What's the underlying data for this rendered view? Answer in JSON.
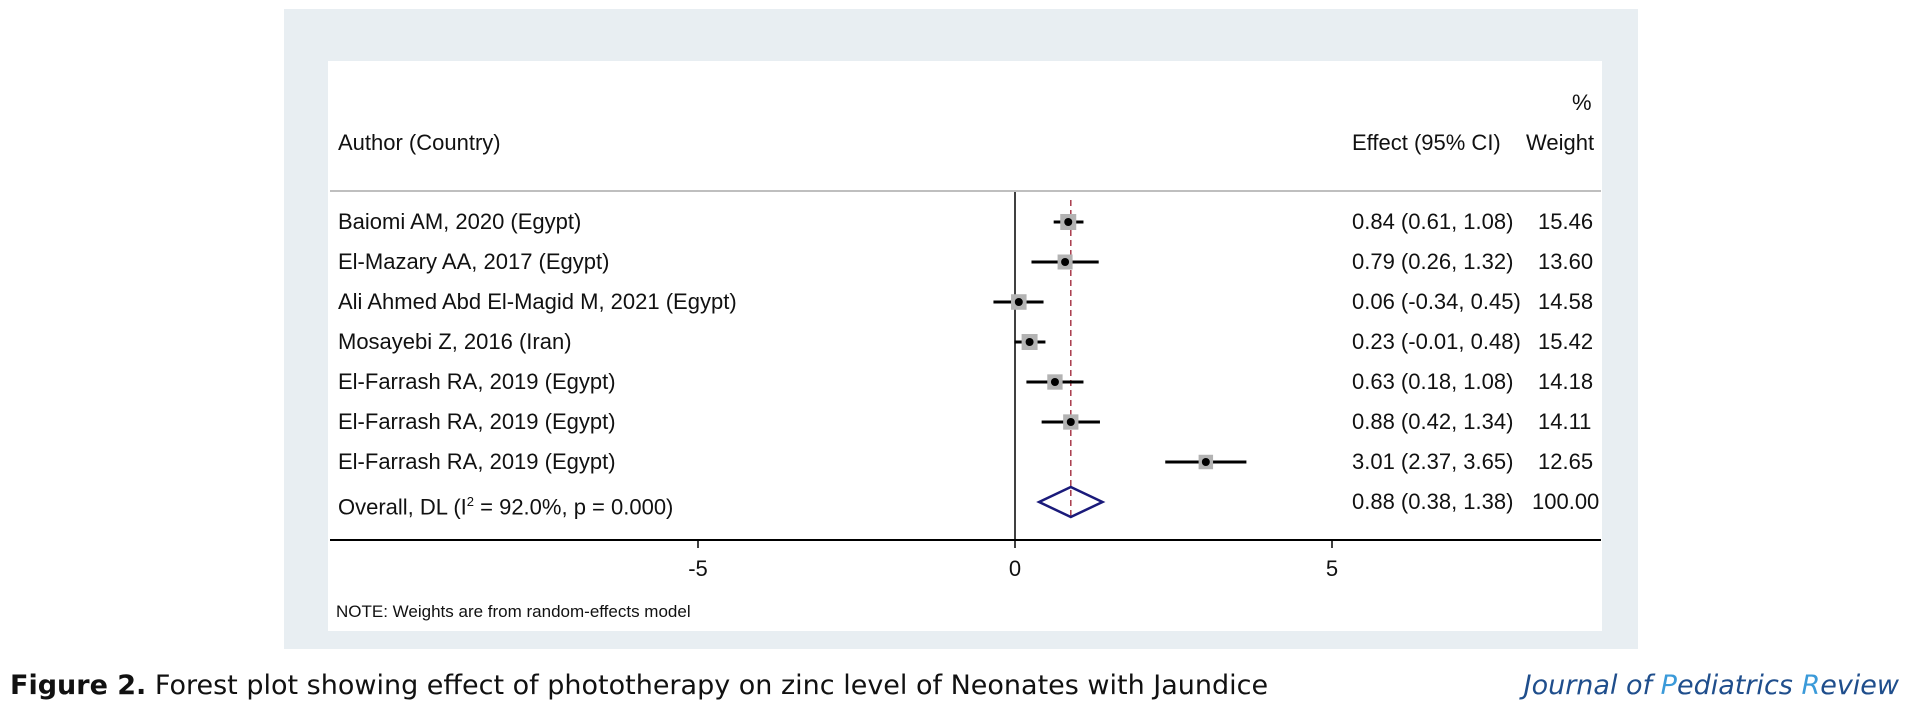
{
  "chart_data": {
    "type": "forest",
    "headers": {
      "study": "Author (Country)",
      "effect": "Effect (95% CI)",
      "weight_top": "%",
      "weight": "Weight"
    },
    "studies": [
      {
        "label": "Baiomi AM, 2020 (Egypt)",
        "effect": 0.84,
        "lo": 0.61,
        "hi": 1.08,
        "weight": 15.46,
        "text": "0.84 (0.61, 1.08)",
        "wtext": "15.46"
      },
      {
        "label": "El-Mazary AA, 2017 (Egypt)",
        "effect": 0.79,
        "lo": 0.26,
        "hi": 1.32,
        "weight": 13.6,
        "text": "0.79 (0.26, 1.32)",
        "wtext": "13.60"
      },
      {
        "label": "Ali Ahmed Abd El-Magid M, 2021 (Egypt)",
        "effect": 0.06,
        "lo": -0.34,
        "hi": 0.45,
        "weight": 14.58,
        "text": "0.06 (-0.34, 0.45)",
        "wtext": "14.58"
      },
      {
        "label": "Mosayebi Z, 2016 (Iran)",
        "effect": 0.23,
        "lo": -0.01,
        "hi": 0.48,
        "weight": 15.42,
        "text": "0.23 (-0.01, 0.48)",
        "wtext": "15.42"
      },
      {
        "label": "El-Farrash RA, 2019 (Egypt)",
        "effect": 0.63,
        "lo": 0.18,
        "hi": 1.08,
        "weight": 14.18,
        "text": "0.63 (0.18, 1.08)",
        "wtext": "14.18"
      },
      {
        "label": "El-Farrash RA, 2019 (Egypt)",
        "effect": 0.88,
        "lo": 0.42,
        "hi": 1.34,
        "weight": 14.11,
        "text": "0.88 (0.42, 1.34)",
        "wtext": "14.11"
      },
      {
        "label": "El-Farrash RA, 2019 (Egypt)",
        "effect": 3.01,
        "lo": 2.37,
        "hi": 3.65,
        "weight": 12.65,
        "text": "3.01 (2.37, 3.65)",
        "wtext": "12.65"
      }
    ],
    "overall": {
      "label_pre": "Overall, DL (I",
      "label_sup": "2",
      "label_post": " = 92.0%, p = 0.000)",
      "effect": 0.88,
      "lo": 0.38,
      "hi": 1.38,
      "text": "0.88 (0.38, 1.38)",
      "wtext": "100.00"
    },
    "x_ticks": [
      -5,
      0,
      5
    ],
    "x_tick_labels": [
      "-5",
      "0",
      "5"
    ],
    "xlim": [
      -10.8,
      9.3
    ],
    "null_line": 0,
    "reference_line": 0.88,
    "note": "NOTE: Weights are from random-effects model",
    "colors": {
      "ci_line": "#000000",
      "box": "#b3b3b3",
      "point": "#000000",
      "diamond": "#1a1a7a",
      "ref_line": "#a83a4a",
      "panel_bg": "#e8eef2"
    }
  },
  "caption": {
    "label": "Figure 2.",
    "text": " Forest plot showing effect of phototherapy on zinc level of Neonates with Jaundice"
  },
  "journal": {
    "j": "J",
    "ournal": "ournal of ",
    "p": "P",
    "ediatrics": "ediatrics ",
    "r": "R",
    "eview": "eview"
  }
}
